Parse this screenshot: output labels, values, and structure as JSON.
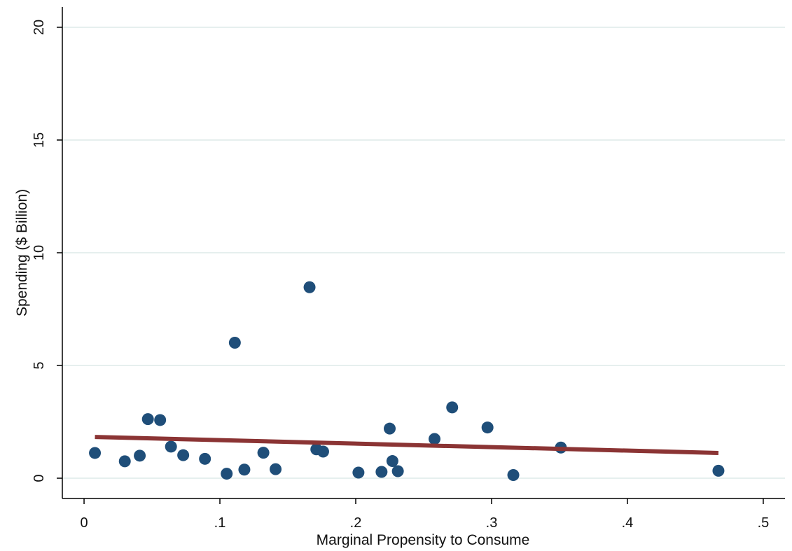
{
  "chart_data": {
    "type": "scatter",
    "title": "",
    "xlabel": "Marginal Propensity to Consume",
    "ylabel": "Spending ($ Billion)",
    "xlim": [
      -0.016,
      0.516
    ],
    "ylim": [
      -0.9,
      20.9
    ],
    "x_ticks": [
      0,
      0.1,
      0.2,
      0.3,
      0.4,
      0.5
    ],
    "x_tick_labels": [
      "0",
      ".1",
      ".2",
      ".3",
      ".4",
      ".5"
    ],
    "y_ticks": [
      0,
      5,
      10,
      15,
      20
    ],
    "y_tick_labels": [
      "0",
      "5",
      "10",
      "15",
      "20"
    ],
    "grid": "horizontal",
    "legend": "none",
    "series": [
      {
        "kind": "scatter",
        "color": "#1f4e79",
        "points": [
          {
            "x": 0.008,
            "y": 1.12
          },
          {
            "x": 0.03,
            "y": 0.75
          },
          {
            "x": 0.041,
            "y": 1.0
          },
          {
            "x": 0.047,
            "y": 2.62
          },
          {
            "x": 0.056,
            "y": 2.58
          },
          {
            "x": 0.064,
            "y": 1.4
          },
          {
            "x": 0.073,
            "y": 1.02
          },
          {
            "x": 0.089,
            "y": 0.86
          },
          {
            "x": 0.105,
            "y": 0.2
          },
          {
            "x": 0.111,
            "y": 6.01
          },
          {
            "x": 0.118,
            "y": 0.38
          },
          {
            "x": 0.132,
            "y": 1.13
          },
          {
            "x": 0.141,
            "y": 0.4
          },
          {
            "x": 0.166,
            "y": 8.47
          },
          {
            "x": 0.171,
            "y": 1.28
          },
          {
            "x": 0.176,
            "y": 1.18
          },
          {
            "x": 0.202,
            "y": 0.25
          },
          {
            "x": 0.219,
            "y": 0.28
          },
          {
            "x": 0.225,
            "y": 2.2
          },
          {
            "x": 0.227,
            "y": 0.76
          },
          {
            "x": 0.231,
            "y": 0.31
          },
          {
            "x": 0.258,
            "y": 1.74
          },
          {
            "x": 0.271,
            "y": 3.14
          },
          {
            "x": 0.297,
            "y": 2.25
          },
          {
            "x": 0.316,
            "y": 0.14
          },
          {
            "x": 0.351,
            "y": 1.36
          },
          {
            "x": 0.467,
            "y": 0.33
          }
        ]
      },
      {
        "kind": "fit-line",
        "color": "#8b3434",
        "x": [
          0.008,
          0.467
        ],
        "y": [
          1.83,
          1.12
        ]
      }
    ]
  }
}
